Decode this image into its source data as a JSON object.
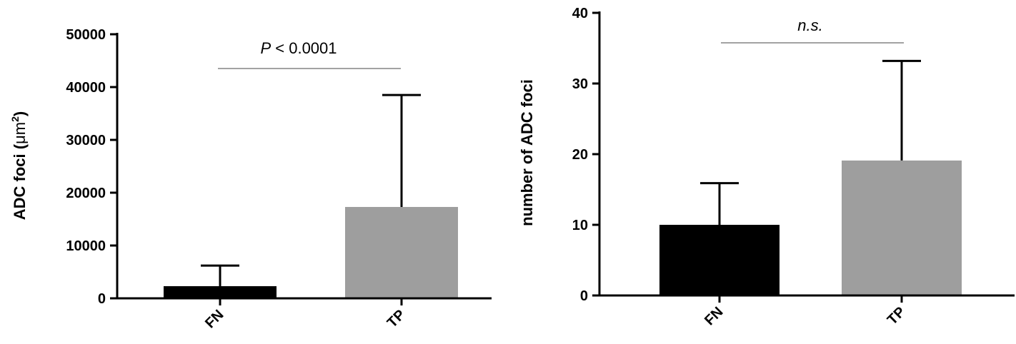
{
  "chart_data": [
    {
      "type": "bar",
      "categories": [
        "FN",
        "TP"
      ],
      "values": [
        2300,
        17300
      ],
      "error_upper": [
        6200,
        38500
      ],
      "colors": [
        "#000000",
        "#9e9e9e"
      ],
      "ylim": [
        0,
        50000
      ],
      "yticks": [
        0,
        10000,
        20000,
        30000,
        40000,
        50000
      ],
      "ylabel_main": "ADC foci (",
      "ylabel_unit": "μm",
      "ylabel_sup": "2",
      "ylabel_close": ")",
      "annotation": {
        "italic": "P",
        "text": " < 0.0001"
      }
    },
    {
      "type": "bar",
      "categories": [
        "FN",
        "TP"
      ],
      "values": [
        10,
        19.1
      ],
      "error_upper": [
        15.9,
        33.2
      ],
      "colors": [
        "#000000",
        "#9e9e9e"
      ],
      "ylim": [
        0,
        40
      ],
      "yticks": [
        0,
        10,
        20,
        30,
        40
      ],
      "ylabel": "number of ADC foci",
      "annotation": {
        "italic": "n.s.",
        "text": ""
      }
    }
  ]
}
